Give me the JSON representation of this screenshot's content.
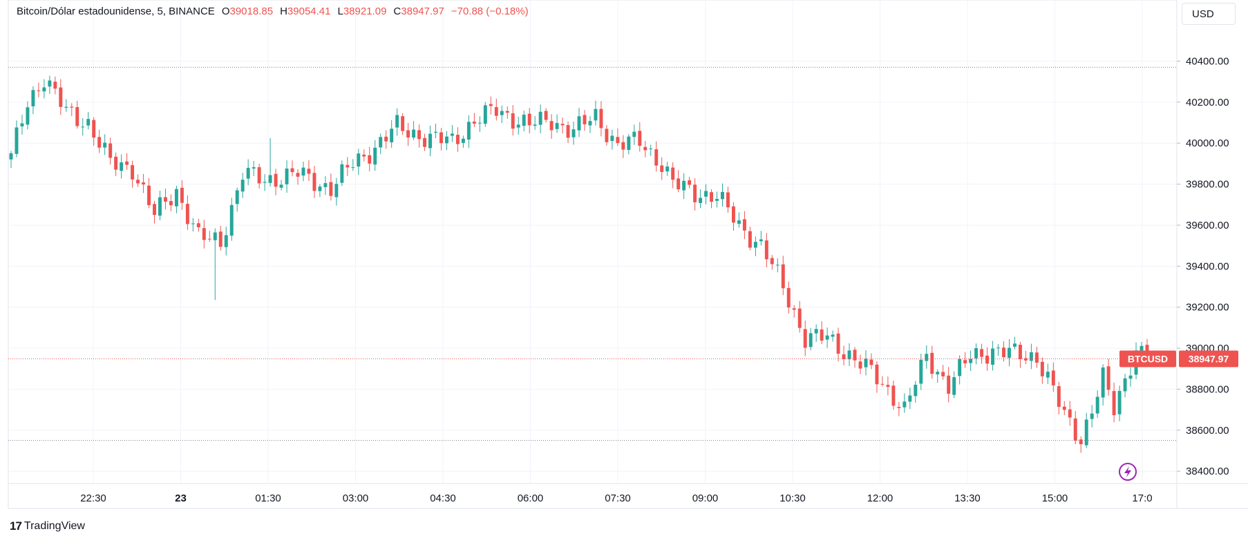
{
  "legend": {
    "symbol": "Bitcoin/Dólar estadounidense, 5, BINANCE",
    "open_label": "O",
    "open": "39018.85",
    "high_label": "H",
    "high": "39054.41",
    "low_label": "L",
    "low": "38921.09",
    "close_label": "C",
    "close": "38947.97",
    "change": "−70.88 (−0.18%)"
  },
  "currency_button": "USD",
  "price_tag": {
    "ticker": "BTCUSD",
    "price": "38947.97"
  },
  "brand": {
    "logo": "17",
    "name": "TradingView"
  },
  "colors": {
    "up": "#26a69a",
    "down": "#ef5350",
    "grid": "#f0f3fa",
    "axis_text": "#131722"
  },
  "chart_data": {
    "type": "candlestick",
    "ylim": [
      38340,
      40570
    ],
    "y_ticks": [
      38400,
      38600,
      38800,
      39000,
      39200,
      39400,
      39600,
      39800,
      40000,
      40200,
      40400
    ],
    "y_tick_labels": [
      "38400.00",
      "38600.00",
      "38800.00",
      "39000.00",
      "39200.00",
      "39400.00",
      "39600.00",
      "39800.00",
      "40000.00",
      "40200.00",
      "40400.00"
    ],
    "x_ticks": [
      "22:30",
      "23",
      "01:30",
      "03:00",
      "04:30",
      "06:00",
      "07:30",
      "09:00",
      "10:30",
      "12:00",
      "13:30",
      "15:00",
      "17:0"
    ],
    "x_tick_bold": [
      "23"
    ],
    "period_high": 40370,
    "period_low": 38550,
    "last_price": 38947.97,
    "anchors": [
      [
        0,
        39930
      ],
      [
        3,
        40200
      ],
      [
        6,
        40320
      ],
      [
        10,
        40150
      ],
      [
        14,
        40100
      ],
      [
        18,
        39900
      ],
      [
        22,
        39880
      ],
      [
        26,
        39650
      ],
      [
        30,
        39770
      ],
      [
        34,
        39540
      ],
      [
        38,
        39520
      ],
      [
        42,
        39850
      ],
      [
        46,
        39820
      ],
      [
        52,
        39850
      ],
      [
        58,
        39780
      ],
      [
        62,
        39900
      ],
      [
        66,
        39980
      ],
      [
        70,
        40080
      ],
      [
        76,
        40020
      ],
      [
        80,
        40010
      ],
      [
        84,
        40110
      ],
      [
        88,
        40160
      ],
      [
        94,
        40090
      ],
      [
        98,
        40110
      ],
      [
        102,
        40060
      ],
      [
        106,
        40130
      ],
      [
        110,
        39990
      ],
      [
        114,
        40010
      ],
      [
        118,
        39900
      ],
      [
        120,
        39800
      ],
      [
        124,
        39760
      ],
      [
        128,
        39740
      ],
      [
        132,
        39600
      ],
      [
        136,
        39500
      ],
      [
        140,
        39300
      ],
      [
        144,
        39050
      ],
      [
        148,
        39050
      ],
      [
        152,
        38970
      ],
      [
        156,
        38880
      ],
      [
        160,
        38770
      ],
      [
        162,
        38700
      ],
      [
        166,
        38960
      ],
      [
        170,
        38820
      ],
      [
        174,
        38960
      ],
      [
        178,
        38990
      ],
      [
        182,
        38970
      ],
      [
        186,
        38960
      ],
      [
        188,
        38850
      ],
      [
        191,
        38670
      ],
      [
        194,
        38560
      ],
      [
        198,
        38850
      ],
      [
        200,
        38700
      ],
      [
        204,
        39000
      ],
      [
        206,
        38950
      ]
    ]
  }
}
